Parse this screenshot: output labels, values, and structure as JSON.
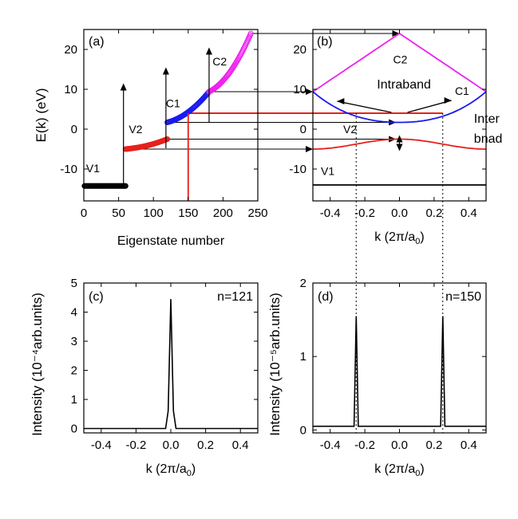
{
  "colors": {
    "black": "#000000",
    "red": "#e8201a",
    "blue": "#1a1aee",
    "magenta": "#ee20ee"
  },
  "chart_data": [
    {
      "id": "a",
      "type": "scatter",
      "panel_label": "(a)",
      "xlabel": "Eigenstate number",
      "ylabel": "E(k) (eV)",
      "xlim": [
        0,
        250
      ],
      "ylim": [
        -18,
        25
      ],
      "xticks": [
        0,
        50,
        100,
        150,
        200,
        250
      ],
      "yticks": [
        -10,
        0,
        10,
        20
      ],
      "bands": [
        {
          "name": "V1",
          "color": "black",
          "x_range": [
            1,
            60
          ],
          "e_range": [
            -14.5,
            -14.0
          ],
          "curve": "flat"
        },
        {
          "name": "V2",
          "color": "red",
          "x_range": [
            60,
            120
          ],
          "e_range": [
            -5.0,
            -2.5
          ],
          "curve": "rise"
        },
        {
          "name": "C1",
          "color": "blue",
          "x_range": [
            120,
            180
          ],
          "e_range": [
            1.7,
            9.4
          ],
          "curve": "rise"
        },
        {
          "name": "C2",
          "color": "magenta",
          "x_range": [
            180,
            240
          ],
          "e_range": [
            9.4,
            24.0
          ],
          "curve": "rise"
        }
      ],
      "arrows_up_at_x": [
        57,
        118,
        180
      ],
      "highlight": {
        "x": 150,
        "e": 4.0,
        "color": "red"
      }
    },
    {
      "id": "b",
      "type": "line",
      "panel_label": "(b)",
      "xlabel": "k (2π/a₀)",
      "ylim": [
        -18,
        25
      ],
      "xlim": [
        -0.5,
        0.5
      ],
      "xticks": [
        -0.4,
        -0.2,
        0.0,
        0.2,
        0.4
      ],
      "yticks": [
        -10,
        0,
        10,
        20
      ],
      "series": [
        {
          "name": "V1",
          "color": "black",
          "k": [
            -0.5,
            0.5
          ],
          "e": [
            -14.0,
            -14.0
          ]
        },
        {
          "name": "V2",
          "color": "red",
          "k": [
            -0.5,
            -0.25,
            0.0,
            0.25,
            0.5
          ],
          "e": [
            -5.0,
            -4.0,
            -2.5,
            -4.0,
            -5.0
          ]
        },
        {
          "name": "C1",
          "color": "blue",
          "k": [
            -0.5,
            -0.25,
            0.0,
            0.25,
            0.5
          ],
          "e": [
            9.4,
            4.0,
            1.7,
            4.0,
            9.4
          ]
        },
        {
          "name": "C2",
          "color": "magenta",
          "k": [
            -0.5,
            -0.25,
            0.0,
            0.25,
            0.5
          ],
          "e": [
            9.4,
            16.6,
            24.0,
            16.6,
            9.4
          ]
        }
      ],
      "annotations": {
        "intraband": "Intraband",
        "interband_line1": "Inter",
        "interband_line2": "bnad"
      },
      "highlight_k": [
        -0.25,
        0.25
      ]
    },
    {
      "id": "c",
      "type": "line",
      "panel_label": "(c)",
      "n_label": "n=121",
      "xlabel": "k (2π/a₀)",
      "ylabel": "Intensity (10⁻⁴arb.units)",
      "xlim": [
        -0.5,
        0.5
      ],
      "ylim": [
        -0.15,
        5
      ],
      "xticks": [
        -0.4,
        -0.2,
        0.0,
        0.2,
        0.4
      ],
      "yticks": [
        0,
        1,
        2,
        3,
        4,
        5
      ],
      "series": [
        {
          "name": "n=121",
          "color": "black",
          "k": [
            -0.5,
            -0.03,
            -0.015,
            0.0,
            0.015,
            0.03,
            0.5
          ],
          "v": [
            0.0,
            0.0,
            0.6,
            4.45,
            0.6,
            0.0,
            0.0
          ]
        }
      ]
    },
    {
      "id": "d",
      "type": "line",
      "panel_label": "(d)",
      "n_label": "n=150",
      "xlabel": "k (2π/a₀)",
      "ylabel": "Intensity (10⁻⁵arb.units)",
      "xlim": [
        -0.5,
        0.5
      ],
      "ylim": [
        -0.04,
        2
      ],
      "xticks": [
        -0.4,
        -0.2,
        0.0,
        0.2,
        0.4
      ],
      "yticks": [
        0,
        1,
        2
      ],
      "series": [
        {
          "name": "n=150",
          "color": "black",
          "k": [
            -0.5,
            -0.262,
            -0.25,
            -0.238,
            0.238,
            0.25,
            0.262,
            0.5
          ],
          "v": [
            0.05,
            0.05,
            1.55,
            0.05,
            0.05,
            1.55,
            0.05,
            0.05
          ]
        }
      ]
    }
  ]
}
